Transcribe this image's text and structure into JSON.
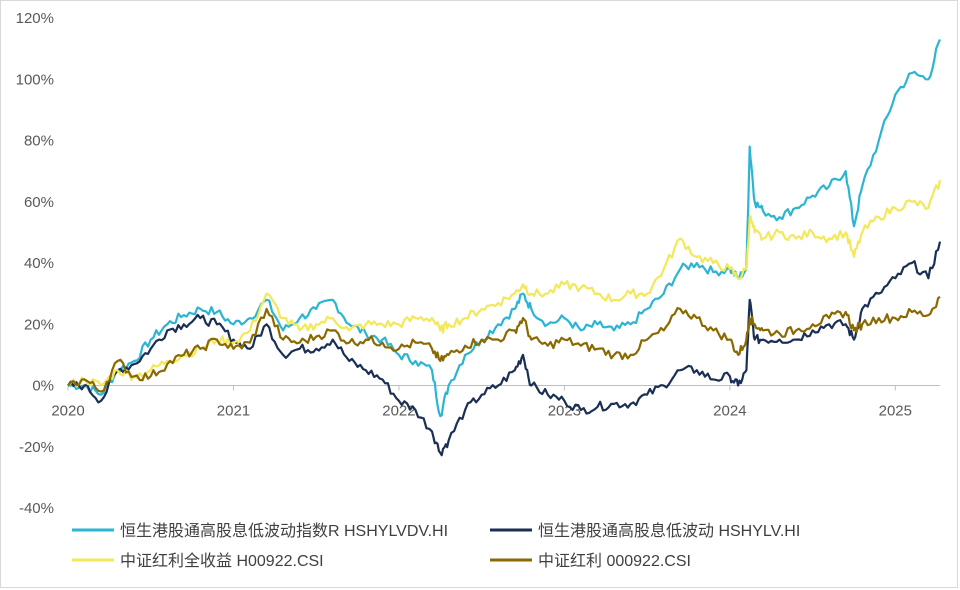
{
  "chart_data": {
    "type": "line",
    "title": "",
    "xlabel": "",
    "ylabel": "",
    "ylim": [
      -40,
      120
    ],
    "y_unit": "%",
    "y_ticks": [
      -40,
      -20,
      0,
      20,
      40,
      60,
      80,
      100,
      120
    ],
    "y_tick_labels": [
      "-40%",
      "-20%",
      "0%",
      "20%",
      "40%",
      "60%",
      "80%",
      "100%",
      "120%"
    ],
    "xlim": [
      2020.0,
      2025.27
    ],
    "x_ticks": [
      2020,
      2021,
      2022,
      2023,
      2024,
      2025
    ],
    "x_tick_labels": [
      "2020",
      "2021",
      "2022",
      "2023",
      "2024",
      "2025"
    ],
    "grid": false,
    "legend_position": "bottom",
    "series": [
      {
        "name": "恒生港股通高股息低波动指数R HSHYLVDV.HI",
        "color": "#2bb5d3",
        "x": [
          2020.0,
          2020.1,
          2020.2,
          2020.3,
          2020.4,
          2020.5,
          2020.6,
          2020.7,
          2020.8,
          2020.9,
          2021.0,
          2021.1,
          2021.2,
          2021.3,
          2021.4,
          2021.5,
          2021.6,
          2021.7,
          2021.8,
          2021.9,
          2022.0,
          2022.1,
          2022.2,
          2022.25,
          2022.3,
          2022.4,
          2022.5,
          2022.6,
          2022.7,
          2022.75,
          2022.8,
          2022.9,
          2023.0,
          2023.1,
          2023.2,
          2023.3,
          2023.4,
          2023.5,
          2023.6,
          2023.7,
          2023.8,
          2023.9,
          2024.0,
          2024.05,
          2024.1,
          2024.12,
          2024.15,
          2024.2,
          2024.3,
          2024.4,
          2024.5,
          2024.6,
          2024.7,
          2024.75,
          2024.8,
          2024.9,
          2025.0,
          2025.1,
          2025.2,
          2025.27
        ],
        "values": [
          0,
          0,
          -3,
          5,
          8,
          15,
          20,
          23,
          25,
          24,
          20,
          22,
          28,
          18,
          22,
          25,
          28,
          20,
          17,
          15,
          10,
          8,
          5,
          -10,
          0,
          10,
          15,
          20,
          25,
          30,
          25,
          20,
          22,
          18,
          20,
          18,
          20,
          25,
          30,
          38,
          40,
          37,
          38,
          35,
          38,
          78,
          60,
          57,
          55,
          58,
          62,
          65,
          70,
          52,
          65,
          80,
          95,
          102,
          100,
          113
        ]
      },
      {
        "name": "恒生港股通高股息低波动 HSHYLV.HI",
        "color": "#1b2f55",
        "x": [
          2020.0,
          2020.1,
          2020.2,
          2020.3,
          2020.4,
          2020.5,
          2020.6,
          2020.7,
          2020.8,
          2020.9,
          2021.0,
          2021.1,
          2021.2,
          2021.3,
          2021.4,
          2021.5,
          2021.6,
          2021.7,
          2021.8,
          2021.9,
          2022.0,
          2022.1,
          2022.2,
          2022.25,
          2022.3,
          2022.4,
          2022.5,
          2022.6,
          2022.7,
          2022.75,
          2022.8,
          2022.9,
          2023.0,
          2023.1,
          2023.2,
          2023.3,
          2023.4,
          2023.5,
          2023.6,
          2023.7,
          2023.8,
          2023.9,
          2024.0,
          2024.05,
          2024.1,
          2024.12,
          2024.15,
          2024.2,
          2024.3,
          2024.4,
          2024.5,
          2024.6,
          2024.7,
          2024.75,
          2024.8,
          2024.9,
          2025.0,
          2025.1,
          2025.2,
          2025.27
        ],
        "values": [
          0,
          0,
          -5,
          5,
          7,
          12,
          18,
          20,
          22,
          20,
          15,
          12,
          20,
          10,
          12,
          12,
          15,
          8,
          5,
          2,
          -5,
          -8,
          -15,
          -22,
          -18,
          -8,
          -3,
          0,
          5,
          10,
          0,
          -3,
          -5,
          -8,
          -7,
          -6,
          -6,
          -3,
          0,
          5,
          5,
          2,
          3,
          0,
          5,
          28,
          15,
          15,
          15,
          15,
          18,
          20,
          20,
          15,
          25,
          30,
          35,
          40,
          35,
          47
        ]
      },
      {
        "name": "中证红利全收益 H00922.CSI",
        "color": "#f2e85a",
        "x": [
          2020.0,
          2020.1,
          2020.2,
          2020.3,
          2020.4,
          2020.5,
          2020.6,
          2020.7,
          2020.8,
          2020.9,
          2021.0,
          2021.1,
          2021.2,
          2021.3,
          2021.4,
          2021.5,
          2021.6,
          2021.7,
          2021.8,
          2021.9,
          2022.0,
          2022.1,
          2022.2,
          2022.25,
          2022.3,
          2022.4,
          2022.5,
          2022.6,
          2022.7,
          2022.75,
          2022.8,
          2022.9,
          2023.0,
          2023.1,
          2023.2,
          2023.3,
          2023.4,
          2023.5,
          2023.6,
          2023.7,
          2023.8,
          2023.9,
          2024.0,
          2024.05,
          2024.1,
          2024.12,
          2024.15,
          2024.2,
          2024.3,
          2024.4,
          2024.5,
          2024.6,
          2024.7,
          2024.75,
          2024.8,
          2024.9,
          2025.0,
          2025.1,
          2025.2,
          2025.27
        ],
        "values": [
          0,
          2,
          0,
          5,
          3,
          5,
          8,
          10,
          12,
          15,
          14,
          18,
          30,
          22,
          18,
          20,
          22,
          18,
          20,
          20,
          20,
          22,
          22,
          18,
          20,
          22,
          25,
          27,
          30,
          33,
          30,
          30,
          33,
          32,
          30,
          28,
          30,
          30,
          38,
          48,
          42,
          40,
          38,
          35,
          38,
          55,
          50,
          48,
          50,
          48,
          50,
          48,
          50,
          42,
          50,
          55,
          58,
          60,
          58,
          67
        ]
      },
      {
        "name": "中证红利 000922.CSI",
        "color": "#8a6a00",
        "x": [
          2020.0,
          2020.1,
          2020.2,
          2020.3,
          2020.4,
          2020.5,
          2020.6,
          2020.7,
          2020.8,
          2020.9,
          2021.0,
          2021.1,
          2021.2,
          2021.3,
          2021.4,
          2021.5,
          2021.6,
          2021.7,
          2021.8,
          2021.9,
          2022.0,
          2022.1,
          2022.2,
          2022.25,
          2022.3,
          2022.4,
          2022.5,
          2022.6,
          2022.7,
          2022.75,
          2022.8,
          2022.9,
          2023.0,
          2023.1,
          2023.2,
          2023.3,
          2023.4,
          2023.5,
          2023.6,
          2023.7,
          2023.8,
          2023.9,
          2024.0,
          2024.05,
          2024.1,
          2024.12,
          2024.15,
          2024.2,
          2024.3,
          2024.4,
          2024.5,
          2024.6,
          2024.7,
          2024.75,
          2024.8,
          2024.9,
          2025.0,
          2025.1,
          2025.2,
          2025.27
        ],
        "values": [
          0,
          2,
          -2,
          8,
          3,
          3,
          7,
          10,
          12,
          15,
          12,
          14,
          25,
          15,
          14,
          16,
          18,
          14,
          15,
          14,
          12,
          14,
          12,
          8,
          10,
          13,
          15,
          15,
          18,
          22,
          15,
          13,
          15,
          13,
          12,
          10,
          10,
          15,
          18,
          25,
          22,
          18,
          15,
          10,
          15,
          22,
          20,
          18,
          17,
          18,
          20,
          22,
          24,
          18,
          20,
          22,
          22,
          24,
          23,
          29
        ]
      }
    ]
  }
}
